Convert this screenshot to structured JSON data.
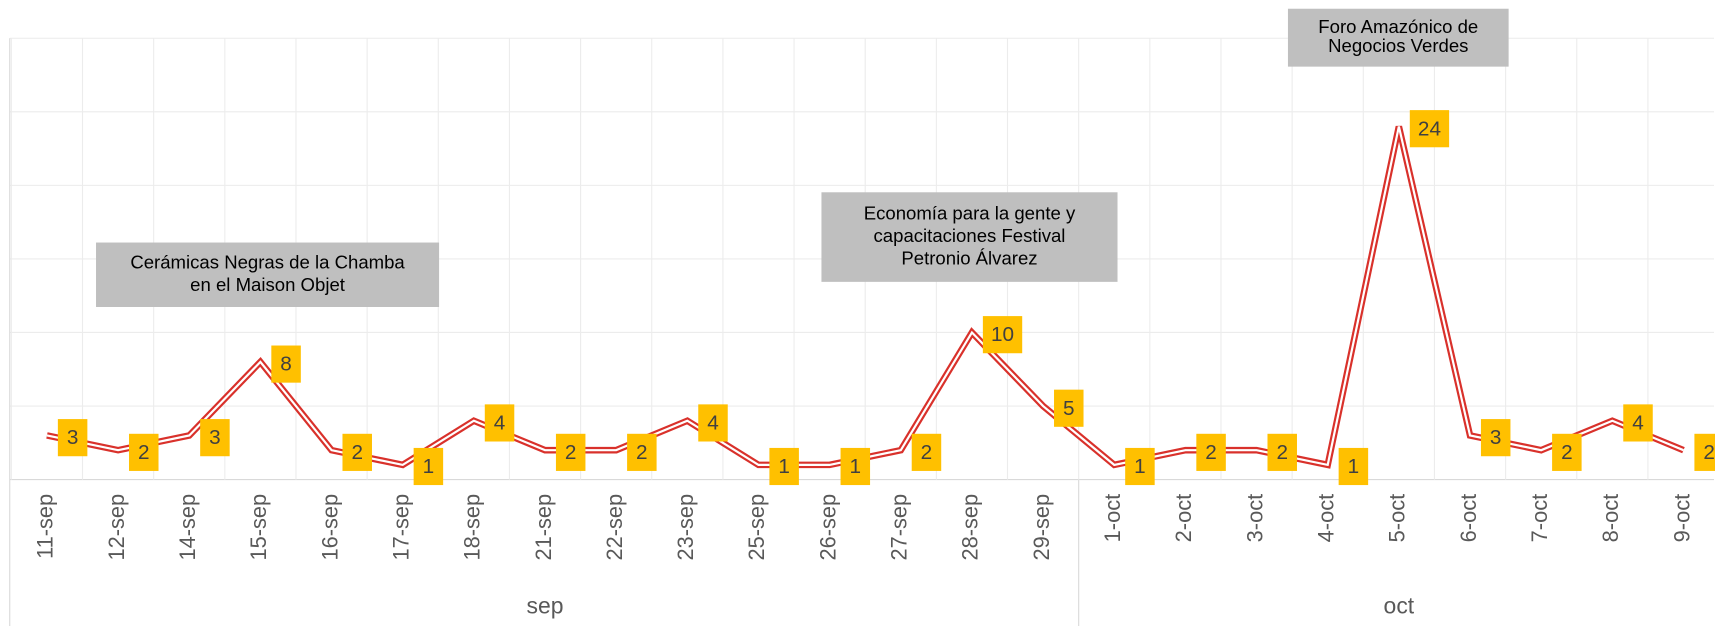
{
  "chart_data": {
    "type": "line",
    "categories": [
      "11-sep",
      "12-sep",
      "14-sep",
      "15-sep",
      "16-sep",
      "17-sep",
      "18-sep",
      "21-sep",
      "22-sep",
      "23-sep",
      "25-sep",
      "26-sep",
      "27-sep",
      "28-sep",
      "29-sep",
      "1-oct",
      "2-oct",
      "3-oct",
      "4-oct",
      "5-oct",
      "6-oct",
      "7-oct",
      "8-oct",
      "9-oct"
    ],
    "groups": [
      {
        "label": "sep",
        "count": 15
      },
      {
        "label": "oct",
        "count": 9
      }
    ],
    "series": [
      {
        "color": "#d9312b",
        "values": [
          3,
          2,
          3,
          8,
          2,
          1,
          4,
          2,
          2,
          4,
          1,
          1,
          2,
          10,
          5,
          1,
          2,
          2,
          1,
          24,
          3,
          2,
          4,
          2
        ]
      }
    ],
    "label_color": "#ffc000",
    "ylim": [
      0,
      30
    ],
    "yticks": [
      0,
      5,
      10,
      15,
      20,
      25,
      30
    ],
    "grid": true,
    "annotations": [
      {
        "index": 3,
        "lines": [
          "Cerámicas Negras de la Chamba",
          "en el Maison Objet"
        ]
      },
      {
        "index": 13,
        "lines": [
          "Economía para la gente y",
          "capacitaciones Festival",
          "Petronio Álvarez"
        ]
      },
      {
        "index": 19,
        "lines": [
          "Foro Amazónico de",
          "Negocios Verdes"
        ]
      }
    ]
  }
}
